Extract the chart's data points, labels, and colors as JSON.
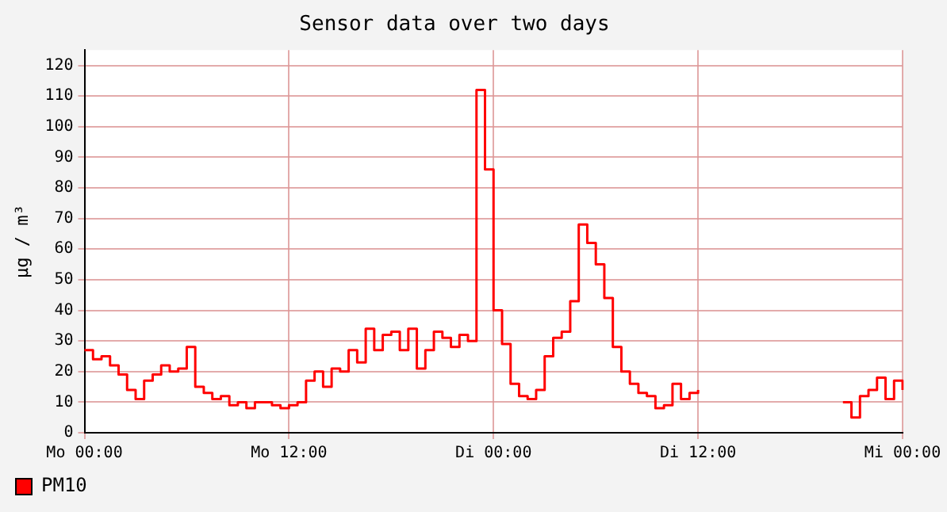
{
  "chart_data": {
    "type": "step",
    "title": "Sensor data over two days",
    "ylabel": "µg / m³",
    "categories": [
      "Mo 00:00",
      null,
      null,
      null,
      null,
      null,
      null,
      null,
      null,
      null,
      null,
      null,
      null,
      null,
      null,
      null,
      null,
      null,
      null,
      null,
      null,
      null,
      null,
      null,
      "Mo 12:00",
      null,
      null,
      null,
      null,
      null,
      null,
      null,
      null,
      null,
      null,
      null,
      null,
      null,
      null,
      null,
      null,
      null,
      null,
      null,
      null,
      null,
      null,
      null,
      "Di 00:00",
      null,
      null,
      null,
      null,
      null,
      null,
      null,
      null,
      null,
      null,
      null,
      null,
      null,
      null,
      null,
      null,
      null,
      null,
      null,
      null,
      null,
      null,
      null,
      "Di 12:00",
      null,
      null,
      null,
      null,
      null,
      null,
      null,
      null,
      null,
      null,
      null,
      null,
      null,
      null,
      null,
      null,
      null,
      null,
      null,
      null,
      null,
      null,
      null,
      "Mi 00:00"
    ],
    "series": [
      {
        "name": "PM10",
        "color": "#ff0000",
        "values": [
          27,
          24,
          25,
          22,
          19,
          14,
          11,
          17,
          19,
          22,
          20,
          21,
          28,
          15,
          13,
          11,
          12,
          9,
          10,
          8,
          10,
          10,
          9,
          8,
          9,
          10,
          17,
          20,
          15,
          21,
          20,
          27,
          23,
          34,
          27,
          32,
          33,
          27,
          34,
          21,
          27,
          33,
          31,
          28,
          32,
          30,
          112,
          86,
          40,
          29,
          16,
          12,
          11,
          14,
          25,
          31,
          33,
          43,
          68,
          62,
          55,
          44,
          28,
          20,
          16,
          13,
          12,
          8,
          9,
          16,
          11,
          13,
          14,
          null,
          null,
          null,
          null,
          null,
          null,
          null,
          null,
          null,
          null,
          null,
          null,
          null,
          null,
          null,
          null,
          10,
          5,
          12,
          14,
          18,
          11,
          17,
          14
        ]
      }
    ],
    "ylim": [
      0,
      125
    ],
    "yticks": [
      0,
      10,
      20,
      30,
      40,
      50,
      60,
      70,
      80,
      90,
      100,
      110,
      120
    ],
    "grid": true,
    "legend": "bottom left",
    "marker": "none",
    "line_style": "solid"
  }
}
